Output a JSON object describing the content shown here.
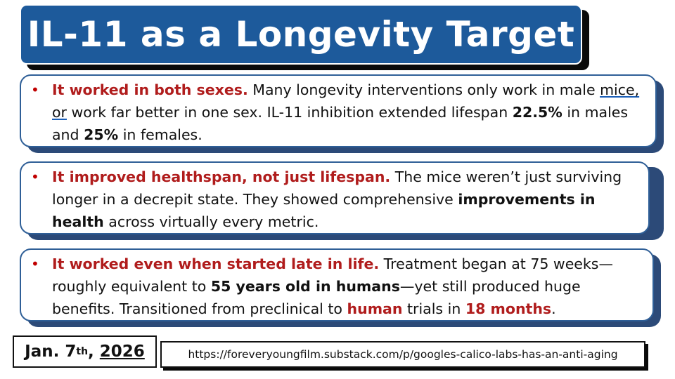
{
  "title": "IL-11 as a Longevity Target",
  "cards": [
    {
      "bullet": "•",
      "lead": "It worked in both sexes.",
      "t1": " Many longevity interventions only work in male ",
      "t2_underlined": "mice, or",
      "t3": " work far better in one sex. IL-11 inhibition extended lifespan ",
      "b1": "22.5%",
      "t4": " in males and ",
      "b2": "25%",
      "t5": " in females."
    },
    {
      "bullet": "•",
      "lead": "It improved healthspan, not just lifespan.",
      "t1": " The mice weren’t just surviving longer in a decrepit state. They showed comprehensive ",
      "b1": "improvements in health",
      "t2": " across virtually every metric."
    },
    {
      "bullet": "•",
      "lead": "It worked even when started late in life.",
      "t1": " Treatment began at 75 weeks—roughly equivalent to ",
      "b1": "55 years old in humans",
      "t2": "—yet still produced huge benefits. Transitioned from preclinical to ",
      "r1": "human",
      "t3": " trials in ",
      "r2": "18 months",
      "t4": "."
    }
  ],
  "footer": {
    "date_month_day": "Jan. 7",
    "date_suffix": "th",
    "date_comma": ",",
    "date_year": "2026",
    "url": "https://foreveryoungfilm.substack.com/p/googles-calico-labs-has-an-anti-aging"
  },
  "colors": {
    "title_bg": "#1d5a9b",
    "card_border": "#2f5f97",
    "card_shadow": "#2c4a78",
    "emphasis_red": "#b01c1c"
  }
}
